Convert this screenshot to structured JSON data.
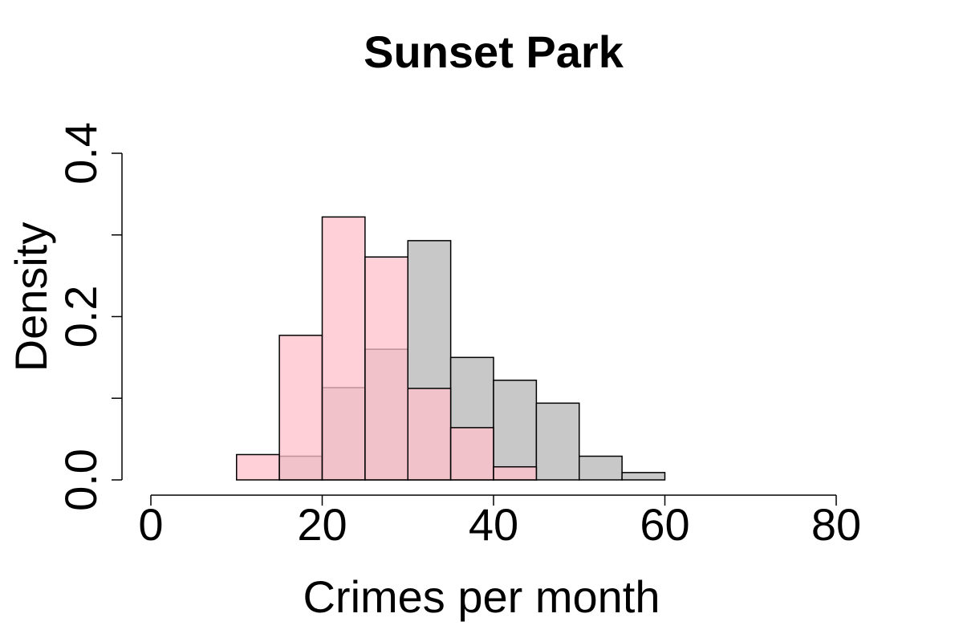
{
  "chart_data": {
    "type": "histogram",
    "title": "Sunset Park",
    "x_label": "Crimes per month",
    "y_label": "Density",
    "xlim": [
      0,
      80
    ],
    "xticks": [
      0,
      20,
      40,
      60,
      80
    ],
    "ylim": [
      0,
      0.4
    ],
    "yticks": [
      {
        "value": 0,
        "label": "0.0"
      },
      {
        "value": 0.1,
        "label": null
      },
      {
        "value": 0.2,
        "label": "0.2"
      },
      {
        "value": 0.3,
        "label": null
      },
      {
        "value": 0.4,
        "label": "0.4"
      }
    ],
    "series": [
      {
        "color": "#c8c8c8",
        "opacity": 1,
        "bins": [
          0,
          5,
          10,
          15,
          20,
          25,
          30,
          35,
          40,
          45,
          50,
          55,
          60
        ],
        "values": [
          0,
          0,
          0,
          0.029,
          0.113,
          0.16,
          0.293,
          0.15,
          0.122,
          0.094,
          0.029,
          0.009
        ]
      },
      {
        "color": "#ffc0cb",
        "opacity": 0.75,
        "bins": [
          0,
          5,
          10,
          15,
          20,
          25,
          30,
          35,
          40,
          45
        ],
        "values": [
          0,
          0,
          0.031,
          0.177,
          0.322,
          0.273,
          0.112,
          0.064,
          0.016
        ]
      }
    ]
  }
}
